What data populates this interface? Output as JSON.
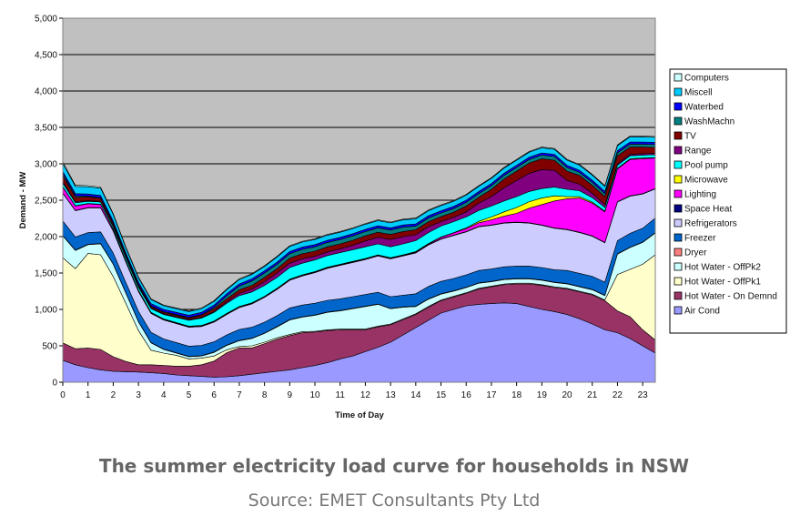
{
  "caption": {
    "title": "The summer electricity load curve for households in NSW",
    "source": "Source: EMET Consultants Pty Ltd"
  },
  "chart_data": {
    "type": "area",
    "stacked": true,
    "xlabel": "Time of Day",
    "ylabel": "Demand - MW",
    "ylim": [
      0,
      5000
    ],
    "xlim": [
      0,
      23.5
    ],
    "yticks": [
      "0",
      "500",
      "1,000",
      "1,500",
      "2,000",
      "2,500",
      "3,000",
      "3,500",
      "4,000",
      "4,500",
      "5,000"
    ],
    "xticks": [
      "0",
      "1",
      "2",
      "3",
      "4",
      "5",
      "6",
      "7",
      "8",
      "9",
      "10",
      "11",
      "12",
      "13",
      "14",
      "15",
      "16",
      "17",
      "18",
      "19",
      "20",
      "21",
      "22",
      "23"
    ],
    "grid": "horizontal",
    "legend_position": "right",
    "plot_background": "#c0c0c0",
    "x": [
      0,
      0.5,
      1,
      1.5,
      2,
      2.5,
      3,
      3.5,
      4,
      4.5,
      5,
      5.5,
      6,
      6.5,
      7,
      7.5,
      8,
      8.5,
      9,
      9.5,
      10,
      10.5,
      11,
      11.5,
      12,
      12.5,
      13,
      13.5,
      14,
      14.5,
      15,
      15.5,
      16,
      16.5,
      17,
      17.5,
      18,
      18.5,
      19,
      19.5,
      20,
      20.5,
      21,
      21.5,
      22,
      22.5,
      23,
      23.5
    ],
    "series": [
      {
        "name": "Air Cond",
        "color": "#9999ff",
        "values": [
          300,
          240,
          200,
          170,
          150,
          145,
          140,
          130,
          120,
          100,
          90,
          80,
          70,
          75,
          90,
          110,
          130,
          150,
          170,
          200,
          230,
          270,
          320,
          360,
          420,
          480,
          550,
          650,
          750,
          850,
          950,
          1000,
          1050,
          1070,
          1080,
          1090,
          1080,
          1040,
          1000,
          970,
          930,
          870,
          800,
          720,
          680,
          600,
          500,
          400
        ]
      },
      {
        "name": "Hot Water - On Demnd",
        "color": "#993366",
        "values": [
          240,
          220,
          270,
          280,
          200,
          140,
          100,
          110,
          110,
          120,
          130,
          160,
          220,
          330,
          380,
          360,
          400,
          440,
          470,
          480,
          460,
          440,
          400,
          360,
          300,
          280,
          240,
          210,
          180,
          180,
          170,
          170,
          170,
          210,
          230,
          250,
          270,
          310,
          330,
          330,
          350,
          370,
          400,
          400,
          300,
          300,
          220,
          180
        ]
      },
      {
        "name": "Hot Water - OffPk1",
        "color": "#ffffcc",
        "values": [
          1170,
          1100,
          1300,
          1300,
          1100,
          800,
          470,
          200,
          170,
          150,
          100,
          90,
          70,
          40,
          20,
          30,
          20,
          20,
          15,
          15,
          10,
          10,
          10,
          10,
          10,
          10,
          10,
          10,
          10,
          10,
          10,
          10,
          10,
          10,
          10,
          10,
          10,
          10,
          10,
          10,
          10,
          10,
          10,
          10,
          500,
          650,
          900,
          1170
        ]
      },
      {
        "name": "Hot Water - OffPk2",
        "color": "#ccffff",
        "values": [
          300,
          250,
          120,
          150,
          170,
          140,
          120,
          100,
          50,
          30,
          30,
          30,
          50,
          60,
          80,
          100,
          120,
          150,
          200,
          200,
          220,
          240,
          250,
          280,
          310,
          300,
          210,
          160,
          100,
          100,
          80,
          70,
          70,
          70,
          60,
          60,
          60,
          60,
          60,
          60,
          60,
          60,
          60,
          60,
          280,
          300,
          300,
          300
        ]
      },
      {
        "name": "Dryer",
        "color": "#ff8080",
        "values": [
          5,
          5,
          5,
          5,
          5,
          5,
          5,
          5,
          5,
          5,
          5,
          5,
          5,
          5,
          5,
          5,
          5,
          5,
          5,
          5,
          5,
          5,
          5,
          5,
          5,
          5,
          5,
          5,
          5,
          5,
          5,
          5,
          5,
          5,
          5,
          5,
          5,
          5,
          5,
          5,
          5,
          5,
          5,
          5,
          5,
          5,
          5,
          5
        ]
      },
      {
        "name": "Freezer",
        "color": "#0066cc",
        "values": [
          200,
          180,
          160,
          160,
          150,
          140,
          140,
          140,
          140,
          140,
          140,
          140,
          140,
          140,
          150,
          150,
          150,
          150,
          160,
          160,
          160,
          160,
          160,
          160,
          160,
          160,
          160,
          160,
          170,
          170,
          170,
          170,
          170,
          170,
          170,
          170,
          170,
          170,
          170,
          170,
          180,
          180,
          180,
          180,
          180,
          190,
          190,
          200
        ]
      },
      {
        "name": "Refrigerators",
        "color": "#ccccff",
        "values": [
          380,
          360,
          340,
          330,
          300,
          280,
          270,
          260,
          260,
          260,
          260,
          260,
          270,
          280,
          300,
          320,
          340,
          360,
          380,
          400,
          420,
          440,
          460,
          470,
          480,
          500,
          520,
          540,
          560,
          570,
          580,
          590,
          590,
          600,
          600,
          600,
          600,
          590,
          580,
          570,
          560,
          560,
          550,
          540,
          530,
          510,
          470,
          400
        ]
      },
      {
        "name": "Space Heat",
        "color": "#000080",
        "values": [
          5,
          5,
          5,
          5,
          5,
          5,
          5,
          5,
          5,
          5,
          5,
          5,
          5,
          5,
          5,
          5,
          5,
          5,
          5,
          5,
          5,
          5,
          5,
          5,
          5,
          5,
          5,
          5,
          5,
          5,
          5,
          5,
          5,
          5,
          5,
          5,
          5,
          5,
          5,
          5,
          5,
          5,
          5,
          5,
          5,
          5,
          5,
          5
        ]
      },
      {
        "name": "Lighting",
        "color": "#ff00ff",
        "values": [
          80,
          60,
          50,
          40,
          20,
          10,
          10,
          5,
          5,
          5,
          5,
          5,
          5,
          5,
          5,
          5,
          5,
          5,
          5,
          5,
          5,
          5,
          5,
          5,
          5,
          5,
          5,
          5,
          10,
          10,
          20,
          30,
          40,
          50,
          70,
          90,
          120,
          200,
          280,
          370,
          420,
          470,
          450,
          420,
          450,
          500,
          480,
          420
        ]
      },
      {
        "name": "Microwave",
        "color": "#ffff00",
        "values": [
          5,
          5,
          5,
          5,
          5,
          5,
          5,
          5,
          5,
          5,
          5,
          5,
          5,
          5,
          5,
          5,
          5,
          5,
          5,
          5,
          5,
          5,
          5,
          5,
          5,
          5,
          5,
          5,
          5,
          5,
          5,
          5,
          10,
          20,
          40,
          60,
          80,
          90,
          90,
          70,
          30,
          20,
          15,
          10,
          10,
          10,
          10,
          5
        ]
      },
      {
        "name": "Pool pump",
        "color": "#00ffff",
        "values": [
          50,
          40,
          30,
          30,
          30,
          40,
          40,
          50,
          60,
          70,
          80,
          100,
          120,
          140,
          150,
          150,
          150,
          150,
          160,
          160,
          160,
          160,
          160,
          160,
          160,
          150,
          150,
          150,
          150,
          150,
          150,
          150,
          150,
          150,
          150,
          150,
          150,
          140,
          130,
          120,
          100,
          80,
          60,
          50,
          40,
          40,
          40,
          40
        ]
      },
      {
        "name": "Range",
        "color": "#800080",
        "values": [
          20,
          15,
          10,
          10,
          10,
          10,
          10,
          10,
          10,
          10,
          10,
          10,
          10,
          20,
          30,
          40,
          50,
          60,
          60,
          60,
          50,
          50,
          50,
          60,
          80,
          90,
          100,
          100,
          80,
          80,
          60,
          60,
          70,
          100,
          130,
          180,
          220,
          250,
          260,
          230,
          120,
          90,
          60,
          40,
          20,
          20,
          20,
          20
        ]
      },
      {
        "name": "TV",
        "color": "#800000",
        "values": [
          80,
          60,
          50,
          40,
          30,
          20,
          20,
          20,
          20,
          20,
          20,
          30,
          40,
          40,
          50,
          50,
          60,
          60,
          70,
          70,
          70,
          70,
          70,
          70,
          70,
          70,
          70,
          70,
          70,
          70,
          70,
          70,
          80,
          80,
          100,
          120,
          130,
          140,
          150,
          140,
          130,
          120,
          110,
          110,
          110,
          100,
          90,
          80
        ]
      },
      {
        "name": "WashMachn",
        "color": "#008080",
        "values": [
          30,
          20,
          10,
          10,
          10,
          10,
          10,
          10,
          10,
          10,
          10,
          10,
          20,
          40,
          50,
          60,
          60,
          60,
          60,
          60,
          60,
          60,
          60,
          60,
          60,
          60,
          60,
          60,
          50,
          50,
          50,
          50,
          50,
          50,
          50,
          50,
          50,
          50,
          50,
          50,
          50,
          40,
          40,
          40,
          40,
          40,
          40,
          40
        ]
      },
      {
        "name": "Waterbed",
        "color": "#0000ff",
        "values": [
          30,
          30,
          30,
          30,
          30,
          30,
          30,
          30,
          30,
          30,
          30,
          30,
          30,
          30,
          30,
          30,
          30,
          30,
          30,
          30,
          30,
          30,
          30,
          30,
          30,
          30,
          30,
          30,
          30,
          30,
          30,
          30,
          30,
          30,
          30,
          30,
          30,
          30,
          30,
          30,
          30,
          30,
          30,
          30,
          30,
          30,
          30,
          30
        ]
      },
      {
        "name": "Miscell",
        "color": "#00ccff",
        "values": [
          110,
          100,
          100,
          100,
          90,
          70,
          60,
          55,
          50,
          50,
          50,
          50,
          50,
          55,
          60,
          60,
          60,
          70,
          70,
          70,
          70,
          70,
          70,
          70,
          70,
          70,
          70,
          70,
          70,
          70,
          70,
          70,
          70,
          70,
          70,
          70,
          70,
          70,
          70,
          70,
          70,
          70,
          70,
          70,
          70,
          70,
          70,
          70
        ]
      },
      {
        "name": "Computers",
        "color": "#ccffff",
        "values": [
          20,
          15,
          15,
          15,
          10,
          10,
          10,
          10,
          10,
          10,
          10,
          10,
          10,
          10,
          10,
          10,
          10,
          10,
          10,
          10,
          10,
          10,
          10,
          10,
          10,
          10,
          10,
          10,
          10,
          10,
          10,
          10,
          10,
          10,
          10,
          10,
          10,
          10,
          10,
          10,
          10,
          10,
          10,
          10,
          10,
          10,
          10,
          10
        ]
      }
    ]
  }
}
